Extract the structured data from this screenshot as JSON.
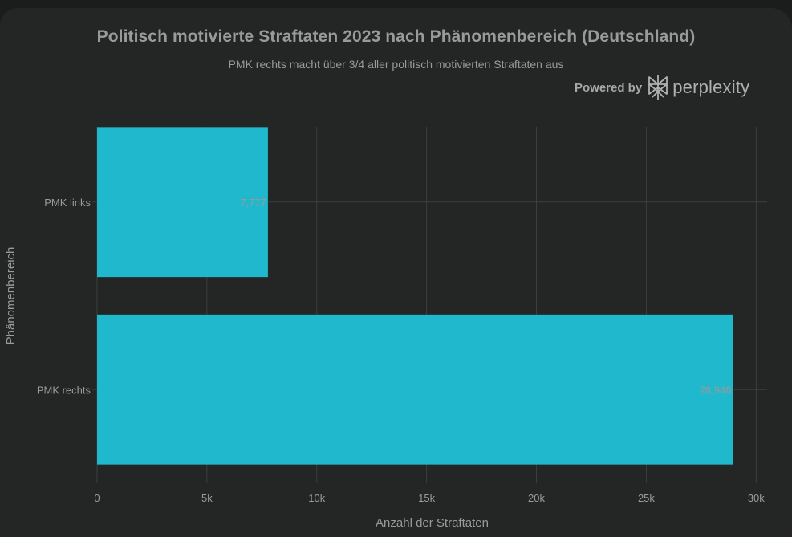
{
  "title": "Politisch motivierte Straftaten 2023 nach Phänomenbereich (Deutschland)",
  "subtitle": "PMK rechts macht über 3/4 aller politisch motivierten Straftaten aus",
  "brand": {
    "powered_label": "Powered by",
    "name": "perplexity",
    "logo_icon": "perplexity-logo-icon"
  },
  "colors": {
    "bar": "#1fb8cd",
    "background": "#242525",
    "grid": "#3d3e3e",
    "text": "#9a9a9a"
  },
  "chart_data": {
    "type": "bar",
    "orientation": "horizontal",
    "title": "Politisch motivierte Straftaten 2023 nach Phänomenbereich (Deutschland)",
    "subtitle": "PMK rechts macht über 3/4 aller politisch motivierten Straftaten aus",
    "xlabel": "Anzahl der Straftaten",
    "ylabel": "Phänomenbereich",
    "categories": [
      "PMK links",
      "PMK rechts"
    ],
    "values": [
      7777,
      28946
    ],
    "data_labels": [
      "7,777",
      "28,946"
    ],
    "xlim": [
      0,
      30500
    ],
    "xticks": [
      0,
      5000,
      10000,
      15000,
      20000,
      25000,
      30000
    ],
    "xtick_labels": [
      "0",
      "5k",
      "10k",
      "15k",
      "20k",
      "25k",
      "30k"
    ],
    "grid": true,
    "legend": "none"
  }
}
